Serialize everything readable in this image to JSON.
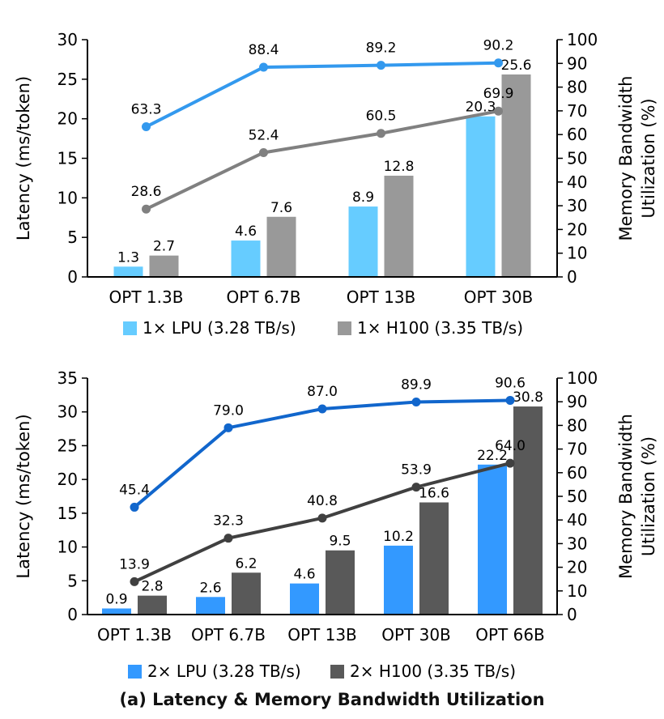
{
  "caption": "(a) Latency & Memory Bandwidth Utilization",
  "chart_data": [
    {
      "type": "bar",
      "ylabel": "Latency (ms/token)",
      "y2label_line1": "Memory Bandwidth",
      "y2label_line2": "Utilization (%)",
      "ylim": [
        0,
        30
      ],
      "yticks": [
        0,
        5,
        10,
        15,
        20,
        25,
        30
      ],
      "y2lim": [
        0,
        100
      ],
      "y2ticks": [
        0,
        10,
        20,
        30,
        40,
        50,
        60,
        70,
        80,
        90,
        100
      ],
      "categories": [
        "OPT 1.3B",
        "OPT 6.7B",
        "OPT 13B",
        "OPT 30B"
      ],
      "series": [
        {
          "name": "1× LPU (3.28 TB/s)",
          "kind": "bar",
          "axis": "left",
          "color": "#66CCFF",
          "values": [
            1.3,
            4.6,
            8.9,
            20.3
          ]
        },
        {
          "name": "1× H100 (3.35 TB/s)",
          "kind": "bar",
          "axis": "left",
          "color": "#999999",
          "values": [
            2.7,
            7.6,
            12.8,
            25.6
          ]
        },
        {
          "name": "LPU utilization",
          "kind": "line",
          "axis": "right",
          "color": "#3399EE",
          "values": [
            63.3,
            88.4,
            89.2,
            90.2
          ]
        },
        {
          "name": "H100 utilization",
          "kind": "line",
          "axis": "right",
          "color": "#808080",
          "values": [
            28.6,
            52.4,
            60.5,
            69.9
          ]
        }
      ],
      "legend": [
        "1× LPU (3.28 TB/s)",
        "1× H100 (3.35 TB/s)"
      ]
    },
    {
      "type": "bar",
      "ylabel": "Latency (ms/token)",
      "y2label_line1": "Memory Bandwidth",
      "y2label_line2": "Utilization (%)",
      "ylim": [
        0,
        35
      ],
      "yticks": [
        0,
        5,
        10,
        15,
        20,
        25,
        30,
        35
      ],
      "y2lim": [
        0,
        100
      ],
      "y2ticks": [
        0,
        10,
        20,
        30,
        40,
        50,
        60,
        70,
        80,
        90,
        100
      ],
      "categories": [
        "OPT 1.3B",
        "OPT 6.7B",
        "OPT 13B",
        "OPT 30B",
        "OPT 66B"
      ],
      "series": [
        {
          "name": "2× LPU (3.28 TB/s)",
          "kind": "bar",
          "axis": "left",
          "color": "#3399FF",
          "values": [
            0.9,
            2.6,
            4.6,
            10.2,
            22.2
          ]
        },
        {
          "name": "2× H100 (3.35 TB/s)",
          "kind": "bar",
          "axis": "left",
          "color": "#595959",
          "values": [
            2.8,
            6.2,
            9.5,
            16.6,
            30.8
          ]
        },
        {
          "name": "LPU utilization",
          "kind": "line",
          "axis": "right",
          "color": "#1166CC",
          "values": [
            45.4,
            79.0,
            87.0,
            89.9,
            90.6
          ]
        },
        {
          "name": "H100 utilization",
          "kind": "line",
          "axis": "right",
          "color": "#404040",
          "values": [
            13.9,
            32.3,
            40.8,
            53.9,
            64.0
          ]
        }
      ],
      "legend": [
        "2× LPU (3.28 TB/s)",
        "2× H100 (3.35 TB/s)"
      ]
    }
  ]
}
